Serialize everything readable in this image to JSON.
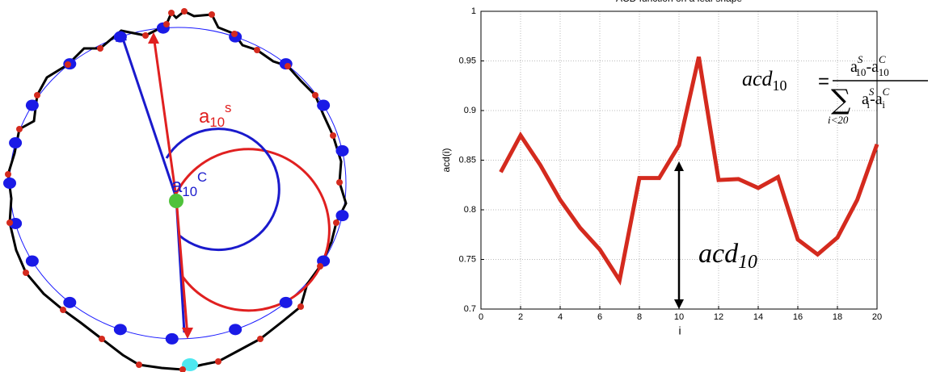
{
  "chart_data": {
    "type": "line",
    "title": "ACD function on a leaf shape",
    "xlabel": "i",
    "ylabel": "acd(i)",
    "x": [
      1,
      2,
      3,
      4,
      5,
      6,
      7,
      8,
      9,
      10,
      11,
      12,
      13,
      14,
      15,
      16,
      17,
      18,
      19,
      20
    ],
    "series": [
      {
        "name": "acd",
        "color": "#d42a1e",
        "values": [
          0.838,
          0.875,
          0.845,
          0.81,
          0.782,
          0.76,
          0.729,
          0.832,
          0.832,
          0.865,
          0.954,
          0.83,
          0.831,
          0.822,
          0.833,
          0.77,
          0.755,
          0.772,
          0.81,
          0.866
        ]
      }
    ],
    "xlim": [
      0,
      20
    ],
    "xticks": [
      0,
      2,
      4,
      6,
      8,
      10,
      12,
      14,
      16,
      18,
      20
    ],
    "ylim": [
      0.7,
      1
    ],
    "yticks": [
      0.7,
      0.75,
      0.8,
      0.85,
      0.9,
      0.95,
      1
    ],
    "grid": true,
    "annotations": {
      "marker": {
        "base": "acd",
        "sub": "10"
      },
      "formula": {
        "lhs": "acd",
        "lhs_sub": "10",
        "eq": "=",
        "num": [
          {
            "base": "a",
            "sub": "10",
            "sup": "S"
          },
          {
            "op": "-"
          },
          {
            "base": "a",
            "sub": "10",
            "sup": "C"
          }
        ],
        "sum": "∑",
        "sum_sub": "i<20",
        "den": [
          {
            "base": "a",
            "sub": "i",
            "sup": "S"
          },
          {
            "op": "-"
          },
          {
            "base": "a",
            "sub": "i",
            "sup": "C"
          }
        ]
      }
    }
  },
  "diagram": {
    "angle_s": {
      "base": "a",
      "sub": "10",
      "sup": "s"
    },
    "angle_c": {
      "base": "a",
      "sub": "10",
      "sup": "C"
    }
  }
}
